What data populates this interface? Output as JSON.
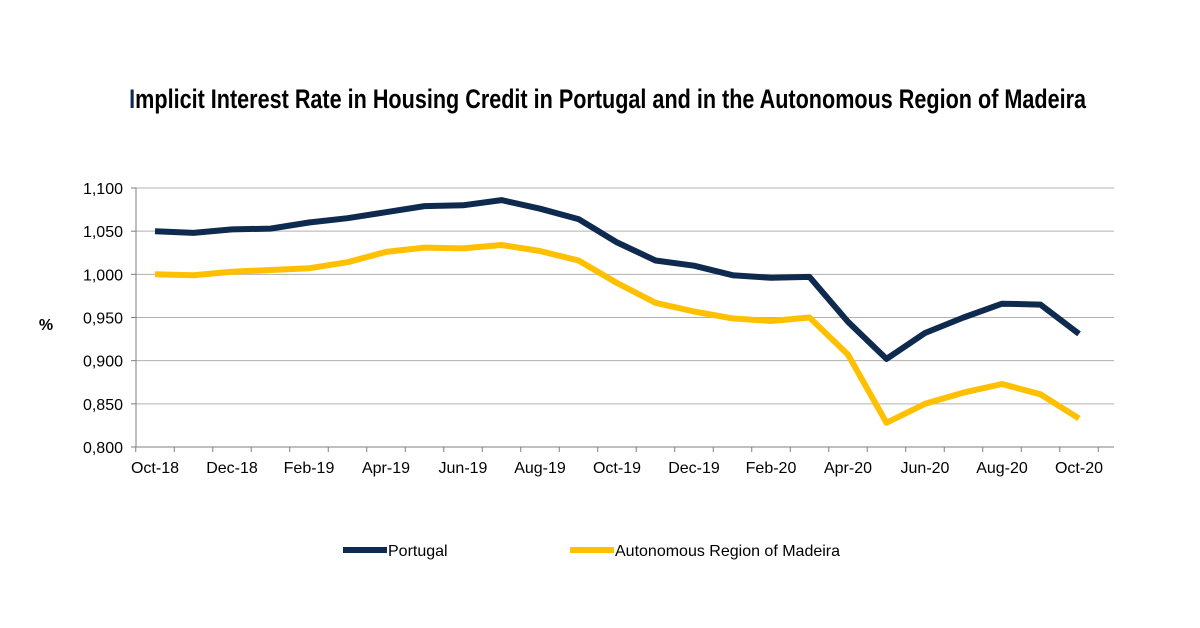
{
  "chart_data": {
    "type": "line",
    "title": "Implicit Interest Rate in Housing Credit in Portugal and in the Autonomous Region of Madeira",
    "ylabel": "%",
    "xlabel": "",
    "ylim": [
      0.8,
      1.1
    ],
    "yticks": [
      1.1,
      1.05,
      1.0,
      0.95,
      0.9,
      0.85,
      0.8
    ],
    "ytick_labels": [
      "1,100",
      "1,050",
      "1,000",
      "0,950",
      "0,900",
      "0,850",
      "0,800"
    ],
    "x": [
      "Oct-18",
      "Nov-18",
      "Dec-18",
      "Jan-19",
      "Feb-19",
      "Mar-19",
      "Apr-19",
      "May-19",
      "Jun-19",
      "Jul-19",
      "Aug-19",
      "Sep-19",
      "Oct-19",
      "Nov-19",
      "Dec-19",
      "Jan-20",
      "Feb-20",
      "Mar-20",
      "Apr-20",
      "May-20",
      "Jun-20",
      "Jul-20",
      "Aug-20",
      "Sep-20",
      "Oct-20"
    ],
    "xtick_labels": [
      "Oct-18",
      "Dec-18",
      "Feb-19",
      "Apr-19",
      "Jun-19",
      "Aug-19",
      "Oct-19",
      "Dec-19",
      "Feb-20",
      "Apr-20",
      "Jun-20",
      "Aug-20",
      "Oct-20"
    ],
    "grid": "horizontal",
    "legend_position": "bottom",
    "series": [
      {
        "name": "Portugal",
        "color": "#0f2a4f",
        "values": [
          1.05,
          1.048,
          1.052,
          1.053,
          1.06,
          1.065,
          1.072,
          1.079,
          1.08,
          1.086,
          1.076,
          1.064,
          1.037,
          1.016,
          1.01,
          0.999,
          0.996,
          0.997,
          0.945,
          0.902,
          0.932,
          0.95,
          0.966,
          0.965,
          0.931
        ]
      },
      {
        "name": "Autonomous Region of Madeira",
        "color": "#ffc000",
        "values": [
          1.0,
          0.999,
          1.003,
          1.005,
          1.007,
          1.014,
          1.026,
          1.031,
          1.03,
          1.034,
          1.027,
          1.016,
          0.99,
          0.967,
          0.957,
          0.949,
          0.946,
          0.95,
          0.907,
          0.828,
          0.85,
          0.863,
          0.873,
          0.861,
          0.833
        ]
      }
    ]
  }
}
